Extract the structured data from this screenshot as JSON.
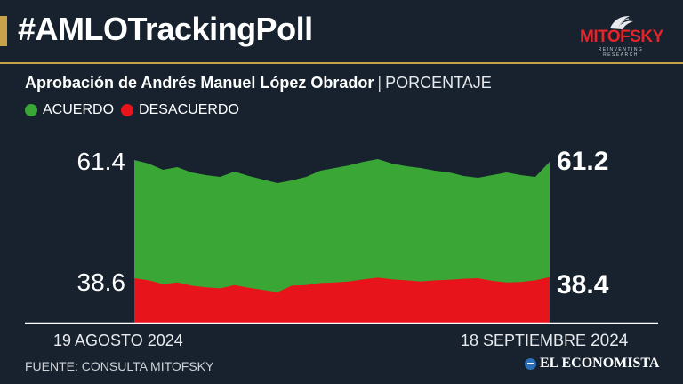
{
  "header": {
    "hashtag": "#AMLOTrackingPoll"
  },
  "logo": {
    "name": "MITOFSKY",
    "tagline": "REINVENTING RESEARCH"
  },
  "subtitle": {
    "title": "Aprobación de Andrés Manuel López Obrador",
    "separator": "|",
    "unit": "PORCENTAJE"
  },
  "legend": {
    "agree": "ACUERDO",
    "disagree": "DESACUERDO"
  },
  "dates": {
    "start": "19 AGOSTO 2024",
    "end_text": "18 SEPTIEMBRE",
    "end_year": "2024"
  },
  "footer": {
    "source": "FUENTE: CONSULTA MITOFSKY",
    "publisher": "EL ECONOMISTA"
  },
  "colors": {
    "background": "#17222e",
    "accent": "#c8a24a",
    "agree": "#3aa635",
    "disagree": "#e8141b",
    "brand_red": "#e4252b",
    "publisher_icon": "#2d6fb6"
  },
  "chart_data": {
    "type": "area",
    "title": "Aprobación de Andrés Manuel López Obrador",
    "unit": "PORCENTAJE",
    "x_start": "19 AGOSTO 2024",
    "x_end": "18 SEPTIEMBRE 2024",
    "stacked": true,
    "series": [
      {
        "name": "ACUERDO",
        "color": "#3aa635",
        "values": [
          61.4,
          61.0,
          60.3,
          60.6,
          60.0,
          59.7,
          59.5,
          60.1,
          59.6,
          59.2,
          58.8,
          59.1,
          59.5,
          60.2,
          60.5,
          60.8,
          61.2,
          61.5,
          61.0,
          60.7,
          60.5,
          60.2,
          60.0,
          59.6,
          59.4,
          59.7,
          60.0,
          59.7,
          59.5,
          61.2
        ]
      },
      {
        "name": "DESACUERDO",
        "color": "#e8141b",
        "values": [
          38.6,
          39.0,
          39.7,
          39.4,
          40.0,
          40.3,
          40.5,
          39.9,
          40.4,
          40.8,
          41.2,
          40.0,
          39.9,
          39.5,
          39.4,
          39.2,
          38.8,
          38.5,
          38.8,
          39.0,
          39.2,
          39.0,
          38.9,
          38.7,
          38.6,
          39.1,
          39.4,
          39.3,
          39.0,
          38.4
        ]
      }
    ],
    "labels": {
      "start_agree": "61.4",
      "start_disagree": "38.6",
      "end_agree": "61.2",
      "end_disagree": "38.4"
    }
  }
}
